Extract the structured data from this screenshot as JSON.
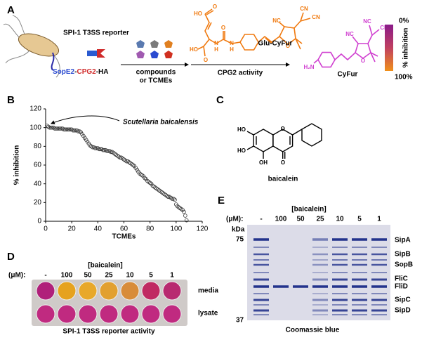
{
  "panel_a": {
    "label": "A",
    "reporter": "SPI-1 T3SS reporter",
    "construct": [
      "SopE2",
      "-",
      "CPG2",
      "-HA"
    ],
    "compounds": [
      "compounds",
      "or TCMEs"
    ],
    "activity": "CPG2 activity",
    "substrate": "Glu-CyFur",
    "product": "CyFur",
    "scale": {
      "top": "0%",
      "bottom": "100%",
      "title": "% inhibition"
    },
    "substrate_atoms": [
      "HO",
      "O",
      "HO",
      "O",
      "N",
      "H",
      "O",
      "N",
      "H",
      "NC",
      "CN",
      "CN",
      "O"
    ],
    "product_atoms": [
      "H₂N",
      "NC",
      "NC",
      "CN",
      "O"
    ]
  },
  "panel_b": {
    "label": "B"
  },
  "panel_c": {
    "label": "C",
    "name": "baicalein",
    "atoms": [
      "HO",
      "HO",
      "OH",
      "O",
      "O"
    ]
  },
  "panel_d": {
    "label": "D",
    "title": "[baicalein]",
    "unit": "(μM):",
    "doses": [
      "-",
      "100",
      "50",
      "25",
      "10",
      "5",
      "1"
    ],
    "rows": [
      "media",
      "lysate"
    ],
    "caption": "SPI-1 T3SS reporter activity"
  },
  "panel_e": {
    "label": "E",
    "title": "[baicalein]",
    "unit": "(μM):",
    "doses": [
      "-",
      "100",
      "50",
      "25",
      "10",
      "5",
      "1"
    ],
    "kda": "kDa",
    "markers": [
      "75",
      "37"
    ],
    "bands": [
      "SipA",
      "SipB",
      "SopB",
      "FliC",
      "FliD",
      "SipC",
      "SipD"
    ],
    "caption": "Coomassie blue"
  },
  "chart_data": {
    "type": "scatter",
    "xlabel": "TCMEs",
    "ylabel": "% inhibition",
    "annotation": "Scutellaria baicalensis",
    "color": "#333333",
    "grid": false,
    "xlim": [
      0,
      120
    ],
    "ylim": [
      0,
      120
    ],
    "xticks": [
      0,
      20,
      40,
      60,
      80,
      100,
      120
    ],
    "yticks": [
      0,
      20,
      40,
      60,
      80,
      100,
      120
    ],
    "x": [
      1,
      2,
      3,
      4,
      5,
      6,
      7,
      8,
      9,
      10,
      11,
      12,
      13,
      14,
      15,
      16,
      17,
      18,
      19,
      20,
      21,
      22,
      23,
      24,
      25,
      26,
      27,
      28,
      29,
      30,
      31,
      32,
      33,
      34,
      35,
      36,
      37,
      38,
      39,
      40,
      41,
      42,
      43,
      44,
      45,
      46,
      47,
      48,
      49,
      50,
      51,
      52,
      53,
      54,
      55,
      56,
      57,
      58,
      59,
      60,
      61,
      62,
      63,
      64,
      65,
      66,
      67,
      68,
      69,
      70,
      71,
      72,
      73,
      74,
      75,
      76,
      77,
      78,
      79,
      80,
      81,
      82,
      83,
      84,
      85,
      86,
      87,
      88,
      89,
      90,
      91,
      92,
      93,
      94,
      95,
      96,
      97,
      98,
      99,
      100,
      101,
      102,
      103,
      104,
      105,
      106,
      107,
      108
    ],
    "values": [
      102,
      101,
      100,
      100,
      100,
      100,
      99,
      99,
      99,
      99,
      99,
      99,
      99,
      98,
      98,
      98,
      98,
      98,
      98,
      98,
      97,
      97,
      97,
      97,
      96,
      96,
      95,
      93,
      91,
      89,
      87,
      85,
      83,
      81,
      80,
      79,
      79,
      78,
      78,
      78,
      77,
      77,
      77,
      76,
      76,
      76,
      75,
      75,
      75,
      74,
      74,
      73,
      72,
      71,
      70,
      69,
      68,
      68,
      67,
      66,
      65,
      64,
      64,
      63,
      62,
      61,
      60,
      59,
      57,
      55,
      53,
      51,
      50,
      49,
      48,
      46,
      45,
      43,
      42,
      41,
      40,
      38,
      37,
      36,
      35,
      34,
      33,
      32,
      31,
      30,
      29,
      28,
      27,
      26,
      26,
      25,
      24,
      24,
      23,
      18,
      16,
      15,
      14,
      13,
      12,
      10,
      6,
      1
    ]
  }
}
